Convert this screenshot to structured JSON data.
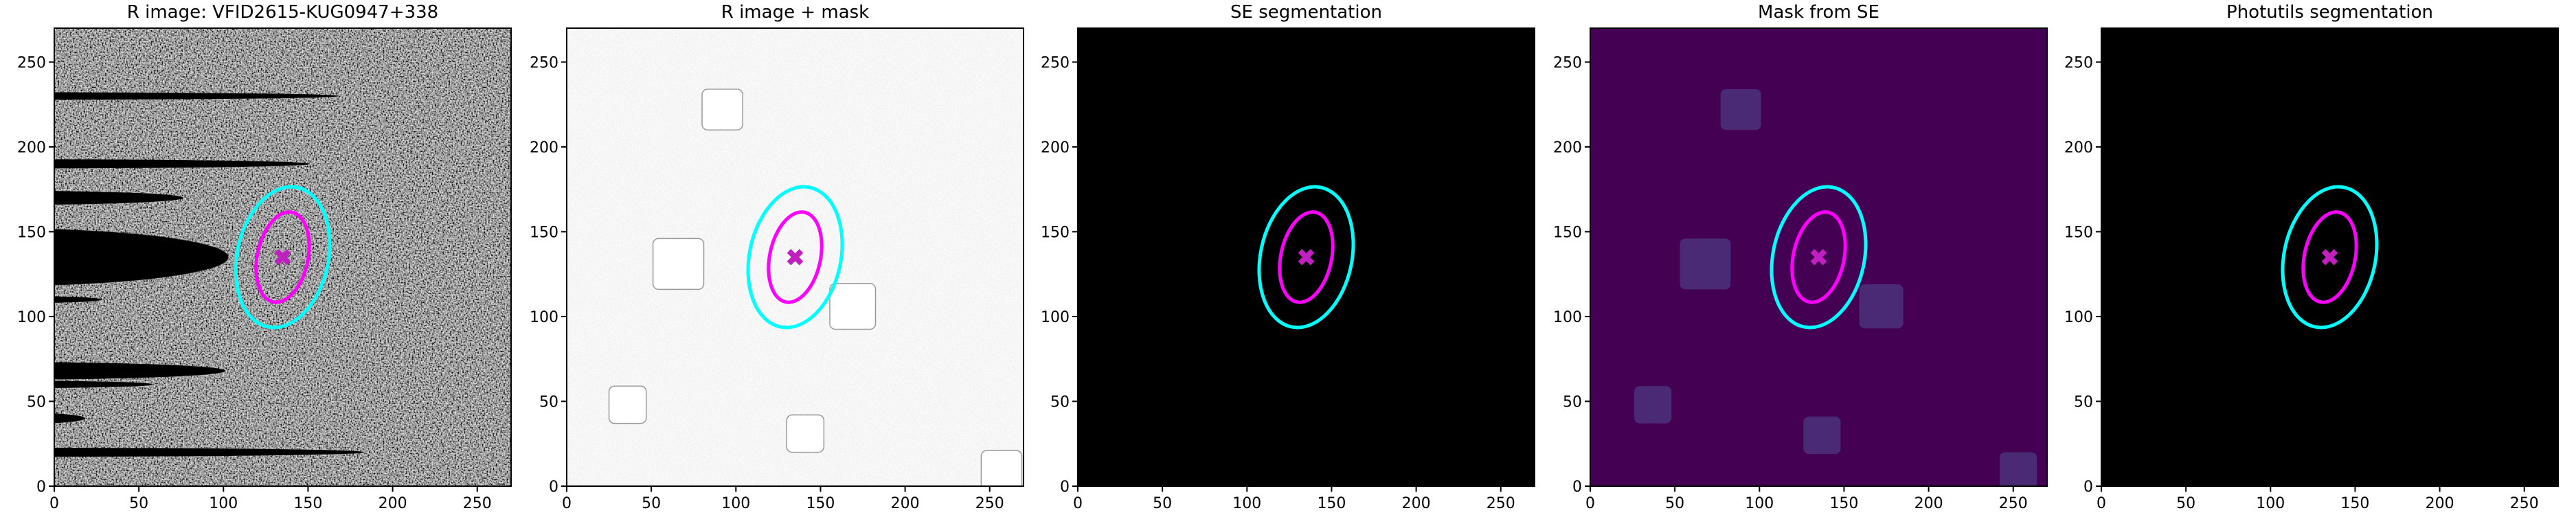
{
  "chart_data": [
    {
      "type": "image",
      "title": "R image: VFID2615-KUG0947+338",
      "xlim": [
        0,
        270
      ],
      "ylim": [
        0,
        270
      ],
      "xticks": [
        0,
        50,
        100,
        150,
        200,
        250
      ],
      "yticks": [
        0,
        50,
        100,
        150,
        200,
        250
      ]
    },
    {
      "type": "image",
      "title": "R image + mask",
      "xlim": [
        0,
        270
      ],
      "ylim": [
        0,
        270
      ],
      "xticks": [
        0,
        50,
        100,
        150,
        200,
        250
      ],
      "yticks": [
        0,
        50,
        100,
        150,
        200,
        250
      ]
    },
    {
      "type": "image",
      "title": "SE segmentation",
      "xlim": [
        0,
        270
      ],
      "ylim": [
        0,
        270
      ],
      "xticks": [
        0,
        50,
        100,
        150,
        200,
        250
      ],
      "yticks": [
        0,
        50,
        100,
        150,
        200,
        250
      ]
    },
    {
      "type": "image",
      "title": "Mask from SE",
      "xlim": [
        0,
        270
      ],
      "ylim": [
        0,
        270
      ],
      "xticks": [
        0,
        50,
        100,
        150,
        200,
        250
      ],
      "yticks": [
        0,
        50,
        100,
        150,
        200,
        250
      ]
    },
    {
      "type": "image",
      "title": "Photutils segmentation",
      "xlim": [
        0,
        270
      ],
      "ylim": [
        0,
        270
      ],
      "xticks": [
        0,
        50,
        100,
        150,
        200,
        250
      ],
      "yticks": [
        0,
        50,
        100,
        150,
        200,
        250
      ]
    }
  ]
}
